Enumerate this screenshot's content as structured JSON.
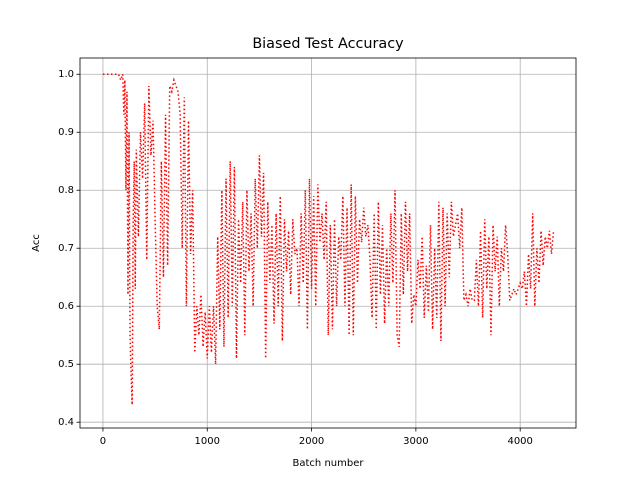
{
  "chart_data": {
    "type": "line",
    "title": "Biased Test Accuracy",
    "x_label": "Batch number",
    "y_label": "Acc",
    "color": "#ff0000",
    "line_style": "dotted",
    "grid": true,
    "xlim": [
      -220,
      4535
    ],
    "ylim": [
      0.39,
      1.028
    ],
    "xticks": [
      0,
      1000,
      2000,
      3000,
      4000
    ],
    "yticks": [
      0.4,
      0.5,
      0.6,
      0.7,
      0.8,
      0.9,
      {
        "value": 1,
        "label": "1.0"
      }
    ],
    "x": [
      0,
      100,
      150,
      170,
      190,
      200,
      210,
      220,
      230,
      240,
      250,
      260,
      270,
      280,
      290,
      300,
      310,
      320,
      340,
      360,
      380,
      400,
      420,
      440,
      460,
      480,
      500,
      520,
      540,
      560,
      580,
      600,
      620,
      640,
      660,
      680,
      700,
      720,
      740,
      760,
      780,
      800,
      820,
      840,
      860,
      880,
      900,
      920,
      940,
      960,
      980,
      1000,
      1020,
      1040,
      1060,
      1080,
      1100,
      1120,
      1140,
      1160,
      1180,
      1200,
      1220,
      1240,
      1260,
      1280,
      1300,
      1320,
      1340,
      1360,
      1380,
      1400,
      1420,
      1440,
      1460,
      1480,
      1500,
      1520,
      1540,
      1560,
      1580,
      1600,
      1620,
      1640,
      1660,
      1680,
      1700,
      1720,
      1740,
      1760,
      1780,
      1800,
      1820,
      1840,
      1860,
      1880,
      1900,
      1920,
      1940,
      1960,
      1980,
      2000,
      2020,
      2040,
      2060,
      2080,
      2100,
      2120,
      2140,
      2160,
      2180,
      2200,
      2220,
      2240,
      2260,
      2280,
      2300,
      2320,
      2340,
      2360,
      2380,
      2400,
      2420,
      2440,
      2460,
      2480,
      2500,
      2520,
      2540,
      2560,
      2580,
      2600,
      2620,
      2640,
      2660,
      2680,
      2700,
      2720,
      2740,
      2760,
      2780,
      2800,
      2820,
      2840,
      2860,
      2880,
      2900,
      2920,
      2940,
      2960,
      2980,
      3000,
      3020,
      3040,
      3060,
      3080,
      3100,
      3120,
      3140,
      3160,
      3180,
      3200,
      3220,
      3240,
      3260,
      3280,
      3300,
      3320,
      3340,
      3360,
      3380,
      3400,
      3420,
      3440,
      3460,
      3480,
      3500,
      3520,
      3540,
      3560,
      3580,
      3600,
      3620,
      3640,
      3660,
      3680,
      3700,
      3720,
      3740,
      3760,
      3780,
      3800,
      3820,
      3840,
      3860,
      3880,
      3900,
      3920,
      3940,
      3960,
      3980,
      4000,
      4020,
      4040,
      4060,
      4080,
      4100,
      4120,
      4140,
      4160,
      4180,
      4200,
      4220,
      4240,
      4260,
      4280,
      4300,
      4320
    ],
    "values": [
      1.0,
      1.0,
      1.0,
      0.99,
      1.0,
      0.93,
      0.99,
      0.8,
      0.97,
      0.62,
      0.9,
      0.55,
      0.48,
      0.43,
      0.75,
      0.85,
      0.63,
      0.87,
      0.72,
      0.9,
      0.82,
      0.95,
      0.68,
      0.98,
      0.86,
      0.92,
      0.75,
      0.6,
      0.56,
      0.85,
      0.65,
      0.93,
      0.67,
      0.98,
      0.97,
      0.99,
      0.98,
      0.97,
      0.93,
      0.7,
      0.96,
      0.6,
      0.92,
      0.69,
      0.8,
      0.52,
      0.6,
      0.55,
      0.62,
      0.53,
      0.59,
      0.51,
      0.6,
      0.52,
      0.6,
      0.5,
      0.72,
      0.56,
      0.8,
      0.53,
      0.82,
      0.58,
      0.85,
      0.6,
      0.84,
      0.51,
      0.75,
      0.64,
      0.78,
      0.55,
      0.8,
      0.66,
      0.76,
      0.6,
      0.82,
      0.7,
      0.86,
      0.72,
      0.83,
      0.51,
      0.78,
      0.64,
      0.74,
      0.57,
      0.76,
      0.6,
      0.79,
      0.54,
      0.75,
      0.66,
      0.73,
      0.62,
      0.75,
      0.69,
      0.7,
      0.6,
      0.76,
      0.64,
      0.8,
      0.56,
      0.82,
      0.63,
      0.79,
      0.6,
      0.81,
      0.71,
      0.76,
      0.68,
      0.78,
      0.55,
      0.74,
      0.56,
      0.75,
      0.6,
      0.72,
      0.68,
      0.79,
      0.6,
      0.77,
      0.55,
      0.81,
      0.55,
      0.79,
      0.64,
      0.75,
      0.71,
      0.77,
      0.72,
      0.74,
      0.68,
      0.58,
      0.76,
      0.56,
      0.78,
      0.62,
      0.74,
      0.57,
      0.7,
      0.6,
      0.76,
      0.64,
      0.8,
      0.55,
      0.53,
      0.76,
      0.62,
      0.78,
      0.66,
      0.76,
      0.57,
      0.62,
      0.6,
      0.68,
      0.63,
      0.72,
      0.58,
      0.67,
      0.59,
      0.74,
      0.56,
      0.7,
      0.58,
      0.78,
      0.54,
      0.77,
      0.6,
      0.76,
      0.65,
      0.78,
      0.72,
      0.74,
      0.76,
      0.7,
      0.77,
      0.61,
      0.62,
      0.6,
      0.63,
      0.61,
      0.61,
      0.68,
      0.6,
      0.73,
      0.58,
      0.75,
      0.63,
      0.72,
      0.55,
      0.74,
      0.66,
      0.72,
      0.6,
      0.7,
      0.66,
      0.74,
      0.69,
      0.61,
      0.62,
      0.63,
      0.62,
      0.63,
      0.64,
      0.63,
      0.66,
      0.6,
      0.69,
      0.63,
      0.76,
      0.6,
      0.7,
      0.64,
      0.73,
      0.67,
      0.72,
      0.7,
      0.73,
      0.69,
      0.73
    ]
  }
}
